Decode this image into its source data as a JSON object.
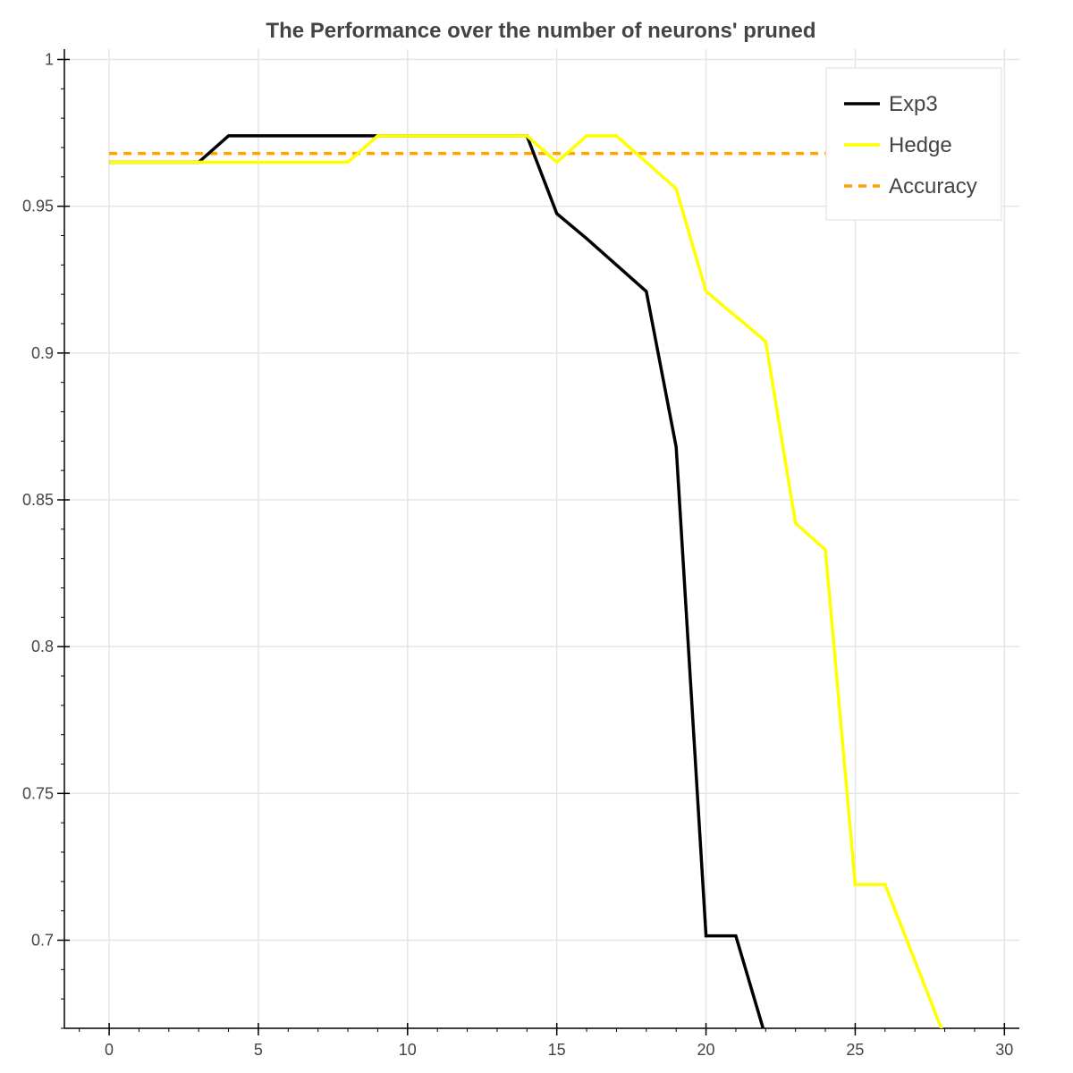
{
  "chart_data": {
    "type": "line",
    "title": "The Performance over the number of neurons' pruned",
    "xlabel": "",
    "ylabel": "",
    "xlim": [
      -1.5,
      30.5
    ],
    "ylim": [
      0.67,
      1.0035
    ],
    "x_ticks": [
      0,
      5,
      10,
      15,
      20,
      25,
      30
    ],
    "x_tick_labels": [
      "0",
      "5",
      "10",
      "15",
      "20",
      "25",
      "30"
    ],
    "y_ticks": [
      0.7,
      0.75,
      0.8,
      0.85,
      0.9,
      0.95,
      1.0
    ],
    "y_tick_labels": [
      "0.7",
      "0.75",
      "0.8",
      "0.85",
      "0.9",
      "0.95",
      "1"
    ],
    "grid": true,
    "legend_position": "top-right",
    "series": [
      {
        "name": "Exp3",
        "color": "#000000",
        "style": "solid",
        "x": [
          0,
          1,
          2,
          3,
          4,
          5,
          6,
          7,
          8,
          9,
          10,
          11,
          12,
          13,
          14,
          15,
          16,
          17,
          18,
          19,
          20,
          21,
          22,
          23
        ],
        "y": [
          0.965,
          0.965,
          0.965,
          0.965,
          0.974,
          0.974,
          0.974,
          0.974,
          0.974,
          0.974,
          0.974,
          0.974,
          0.974,
          0.974,
          0.974,
          0.9475,
          0.939,
          0.93,
          0.921,
          0.868,
          0.7015,
          0.7015,
          0.667,
          0.64
        ]
      },
      {
        "name": "Hedge",
        "color": "#ffff00",
        "style": "solid",
        "x": [
          0,
          1,
          2,
          3,
          4,
          5,
          6,
          7,
          8,
          9,
          10,
          11,
          12,
          13,
          14,
          15,
          16,
          17,
          18,
          19,
          20,
          21,
          22,
          23,
          24,
          25,
          26,
          27,
          28,
          29
        ],
        "y": [
          0.965,
          0.965,
          0.965,
          0.965,
          0.965,
          0.965,
          0.965,
          0.965,
          0.965,
          0.974,
          0.974,
          0.974,
          0.974,
          0.974,
          0.974,
          0.965,
          0.974,
          0.974,
          0.965,
          0.956,
          0.921,
          0.9125,
          0.904,
          0.842,
          0.833,
          0.719,
          0.719,
          0.693,
          0.667,
          0.64
        ]
      },
      {
        "name": "Accuracy",
        "color": "#ffa500",
        "style": "dashed",
        "x": [
          0,
          29
        ],
        "y": [
          0.968,
          0.968
        ]
      }
    ]
  }
}
